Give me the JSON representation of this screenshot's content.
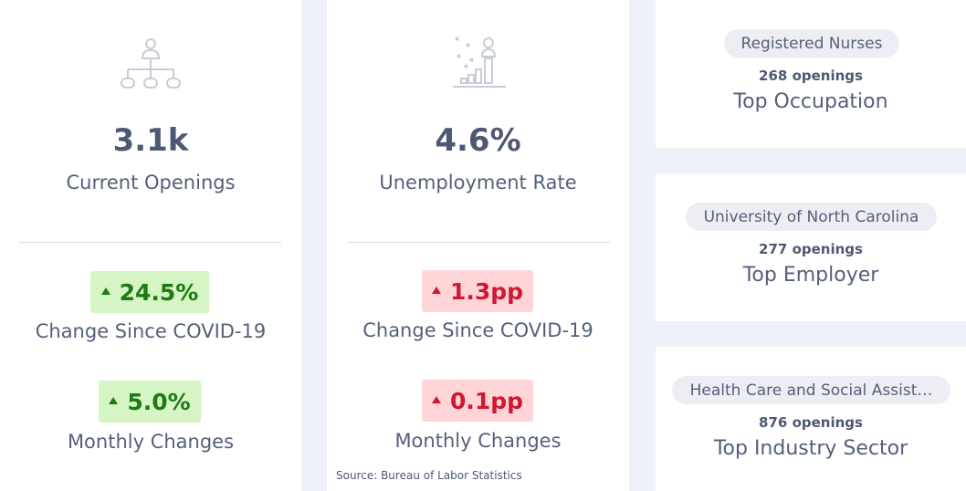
{
  "openings": {
    "icon": "org-chart-icon",
    "value": "3.1k",
    "label": "Current Openings",
    "change_covid": {
      "value": "24.5%",
      "direction": "up",
      "color": "#1d7a14",
      "bg": "#d6f5c4"
    },
    "change_covid_label": "Change Since COVID-19",
    "monthly": {
      "value": "5.0%",
      "direction": "up",
      "color": "#1d7a14",
      "bg": "#d6f5c4"
    },
    "monthly_label": "Monthly Changes"
  },
  "unemployment": {
    "icon": "growth-chart-person-icon",
    "value": "4.6%",
    "label": "Unemployment Rate",
    "change_covid": {
      "value": "1.3pp",
      "direction": "up",
      "color": "#cf1832",
      "bg": "#ffd5d8"
    },
    "change_covid_label": "Change Since COVID-19",
    "monthly": {
      "value": "0.1pp",
      "direction": "up",
      "color": "#cf1832",
      "bg": "#ffd5d8"
    },
    "monthly_label": "Monthly Changes",
    "source": "Source: Bureau of Labor Statistics"
  },
  "top_cards": {
    "occupation": {
      "name": "Registered Nurses",
      "openings": "268 openings",
      "label": "Top Occupation"
    },
    "employer": {
      "name": "University of North Carolina",
      "openings": "277 openings",
      "label": "Top Employer"
    },
    "industry": {
      "name": "Health Care and Social Assist…",
      "openings": "876 openings",
      "label": "Top Industry Sector"
    }
  }
}
